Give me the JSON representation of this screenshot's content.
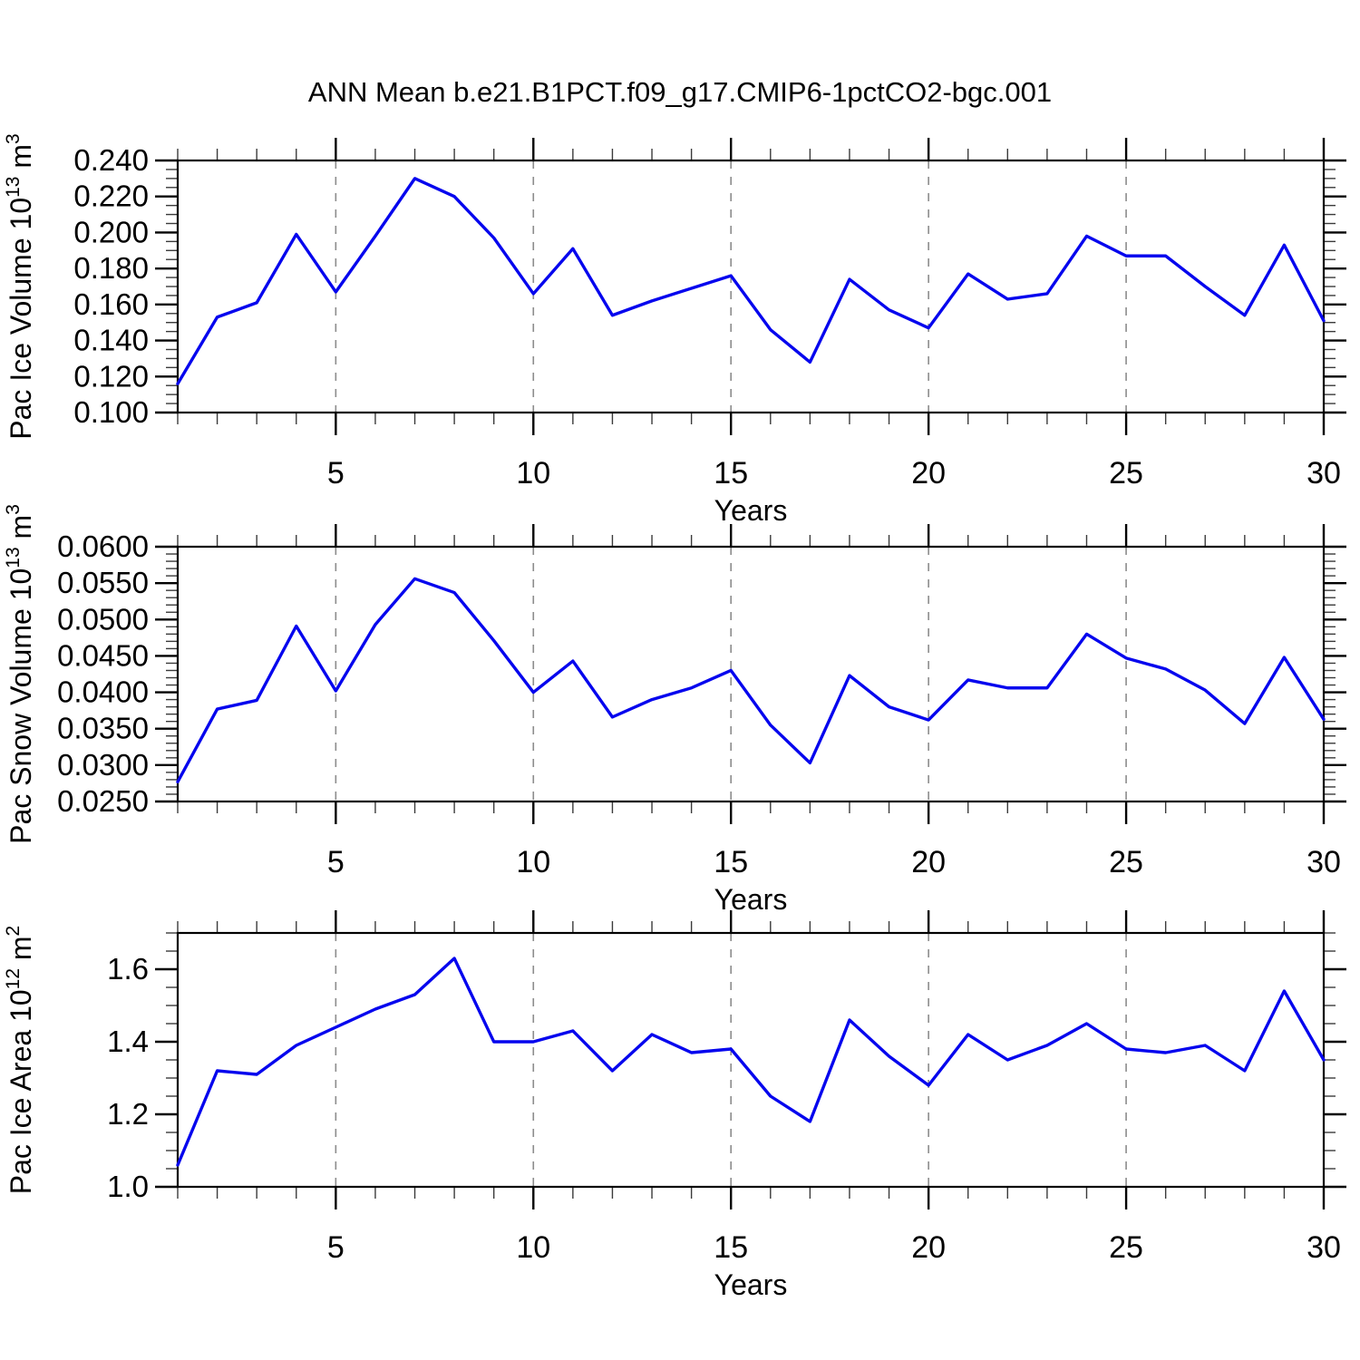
{
  "title": "ANN Mean b.e21.B1PCT.f09_g17.CMIP6-1pctCO2-bgc.001",
  "colors": {
    "line": "#0505ee",
    "grid": "#8c8c8c",
    "axis": "#000000"
  },
  "chart_data": [
    {
      "type": "line",
      "name": "pac-ice-volume",
      "ylabel": "Pac Ice Volume 10^13 m^3",
      "ylabel_parts": [
        {
          "t": "Pac Ice Volume 10"
        },
        {
          "t": "13",
          "sup": true
        },
        {
          "t": " m"
        },
        {
          "t": "3",
          "sup": true
        }
      ],
      "xlabel": "Years",
      "xlim": [
        1,
        30
      ],
      "x_start": 1,
      "x_step": 1,
      "values": [
        0.116,
        0.153,
        0.161,
        0.199,
        0.167,
        0.198,
        0.23,
        0.22,
        0.197,
        0.166,
        0.191,
        0.154,
        0.162,
        0.169,
        0.176,
        0.146,
        0.128,
        0.174,
        0.157,
        0.147,
        0.177,
        0.163,
        0.166,
        0.198,
        0.187,
        0.187,
        0.17,
        0.154,
        0.193,
        0.151
      ],
      "ylim": [
        0.1,
        0.24
      ],
      "yticks": {
        "labels": [
          "0.100",
          "0.120",
          "0.140",
          "0.160",
          "0.180",
          "0.200",
          "0.220",
          "0.240"
        ],
        "values": [
          0.1,
          0.12,
          0.14,
          0.16,
          0.18,
          0.2,
          0.22,
          0.24
        ],
        "minor_step": 0.005
      },
      "xticks": {
        "labels": [
          "5",
          "10",
          "15",
          "20",
          "25",
          "30"
        ],
        "values": [
          5,
          10,
          15,
          20,
          25,
          30
        ],
        "minor_step": 1
      },
      "grid_x": [
        5,
        10,
        15,
        20,
        25
      ]
    },
    {
      "type": "line",
      "name": "pac-snow-volume",
      "ylabel": "Pac Snow Volume 10^13 m^3",
      "ylabel_parts": [
        {
          "t": "Pac Snow Volume 10"
        },
        {
          "t": "13",
          "sup": true
        },
        {
          "t": " m"
        },
        {
          "t": "3",
          "sup": true
        }
      ],
      "xlabel": "Years",
      "xlim": [
        1,
        30
      ],
      "x_start": 1,
      "x_step": 1,
      "values": [
        0.0277,
        0.0377,
        0.0389,
        0.0491,
        0.0402,
        0.0493,
        0.0556,
        0.0537,
        0.0471,
        0.04,
        0.0443,
        0.0366,
        0.039,
        0.0406,
        0.043,
        0.0355,
        0.0303,
        0.0423,
        0.038,
        0.0362,
        0.0417,
        0.0406,
        0.0406,
        0.048,
        0.0447,
        0.0432,
        0.0403,
        0.0357,
        0.0448,
        0.0363
      ],
      "ylim": [
        0.025,
        0.06
      ],
      "yticks": {
        "labels": [
          "0.0250",
          "0.0300",
          "0.0350",
          "0.0400",
          "0.0450",
          "0.0500",
          "0.0550",
          "0.0600"
        ],
        "values": [
          0.025,
          0.03,
          0.035,
          0.04,
          0.045,
          0.05,
          0.055,
          0.06
        ],
        "minor_step": 0.001
      },
      "xticks": {
        "labels": [
          "5",
          "10",
          "15",
          "20",
          "25",
          "30"
        ],
        "values": [
          5,
          10,
          15,
          20,
          25,
          30
        ],
        "minor_step": 1
      },
      "grid_x": [
        5,
        10,
        15,
        20,
        25
      ]
    },
    {
      "type": "line",
      "name": "pac-ice-area",
      "ylabel": "Pac Ice Area 10^12 m^2",
      "ylabel_parts": [
        {
          "t": "Pac Ice Area 10"
        },
        {
          "t": "12",
          "sup": true
        },
        {
          "t": " m"
        },
        {
          "t": "2",
          "sup": true
        }
      ],
      "xlabel": "Years",
      "xlim": [
        1,
        30
      ],
      "x_start": 1,
      "x_step": 1,
      "values": [
        1.06,
        1.32,
        1.31,
        1.39,
        1.44,
        1.49,
        1.53,
        1.63,
        1.4,
        1.4,
        1.43,
        1.32,
        1.42,
        1.37,
        1.38,
        1.25,
        1.18,
        1.46,
        1.36,
        1.28,
        1.42,
        1.35,
        1.39,
        1.45,
        1.38,
        1.37,
        1.39,
        1.32,
        1.54,
        1.35
      ],
      "ylim": [
        1.0,
        1.7
      ],
      "yticks": {
        "labels": [
          "1.0",
          "1.2",
          "1.4",
          "1.6"
        ],
        "values": [
          1.0,
          1.2,
          1.4,
          1.6
        ],
        "minor_step": 0.05
      },
      "xticks": {
        "labels": [
          "5",
          "10",
          "15",
          "20",
          "25",
          "30"
        ],
        "values": [
          5,
          10,
          15,
          20,
          25,
          30
        ],
        "minor_step": 1
      },
      "grid_x": [
        5,
        10,
        15,
        20,
        25
      ]
    }
  ]
}
